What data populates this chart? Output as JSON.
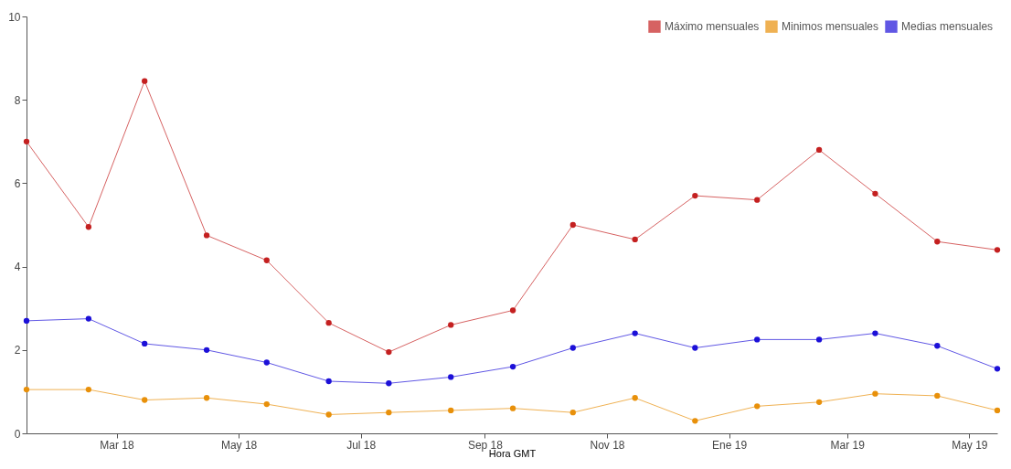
{
  "chart_data": {
    "type": "line",
    "xlabel": "Hora GMT",
    "x": [
      "2018-01-15",
      "2018-02-15",
      "2018-03-15",
      "2018-04-15",
      "2018-05-15",
      "2018-06-15",
      "2018-07-15",
      "2018-08-15",
      "2018-09-15",
      "2018-10-15",
      "2018-11-15",
      "2018-12-15",
      "2019-01-15",
      "2019-02-15",
      "2019-03-15",
      "2019-04-15",
      "2019-05-15"
    ],
    "series": [
      {
        "name": "Máximo mensuales",
        "color": "#c42020",
        "values": [
          7.0,
          4.95,
          8.45,
          4.75,
          4.15,
          2.65,
          1.95,
          2.6,
          2.95,
          5.0,
          4.65,
          5.7,
          5.6,
          6.8,
          5.75,
          4.6,
          4.4
        ]
      },
      {
        "name": "Minimos mensuales",
        "color": "#e8900a",
        "values": [
          1.05,
          1.05,
          0.8,
          0.85,
          0.7,
          0.45,
          0.5,
          0.55,
          0.6,
          0.5,
          0.85,
          0.3,
          0.65,
          0.75,
          0.95,
          0.9,
          0.55
        ]
      },
      {
        "name": "Medias mensuales",
        "color": "#1c10d8",
        "values": [
          2.7,
          2.75,
          2.15,
          2.0,
          1.7,
          1.25,
          1.2,
          1.35,
          1.6,
          2.05,
          2.4,
          2.05,
          2.25,
          2.25,
          2.4,
          2.1,
          1.55
        ]
      }
    ],
    "xlim": [
      "2018-01-15",
      "2019-05-15"
    ],
    "xticks": [
      {
        "value": "2018-03-01",
        "label": "Mar 18"
      },
      {
        "value": "2018-05-01",
        "label": "May 18"
      },
      {
        "value": "2018-07-01",
        "label": "Jul 18"
      },
      {
        "value": "2018-09-01",
        "label": "Sep 18"
      },
      {
        "value": "2018-11-01",
        "label": "Nov 18"
      },
      {
        "value": "2019-01-01",
        "label": "Ene 19"
      },
      {
        "value": "2019-03-01",
        "label": "Mar 19"
      },
      {
        "value": "2019-05-01",
        "label": "May 19"
      }
    ],
    "ylim": [
      0,
      10
    ],
    "yticks": [
      0,
      2,
      4,
      6,
      8,
      10
    ],
    "grid": false,
    "legend": "top right",
    "marker": "circle",
    "line_style": "solid"
  }
}
